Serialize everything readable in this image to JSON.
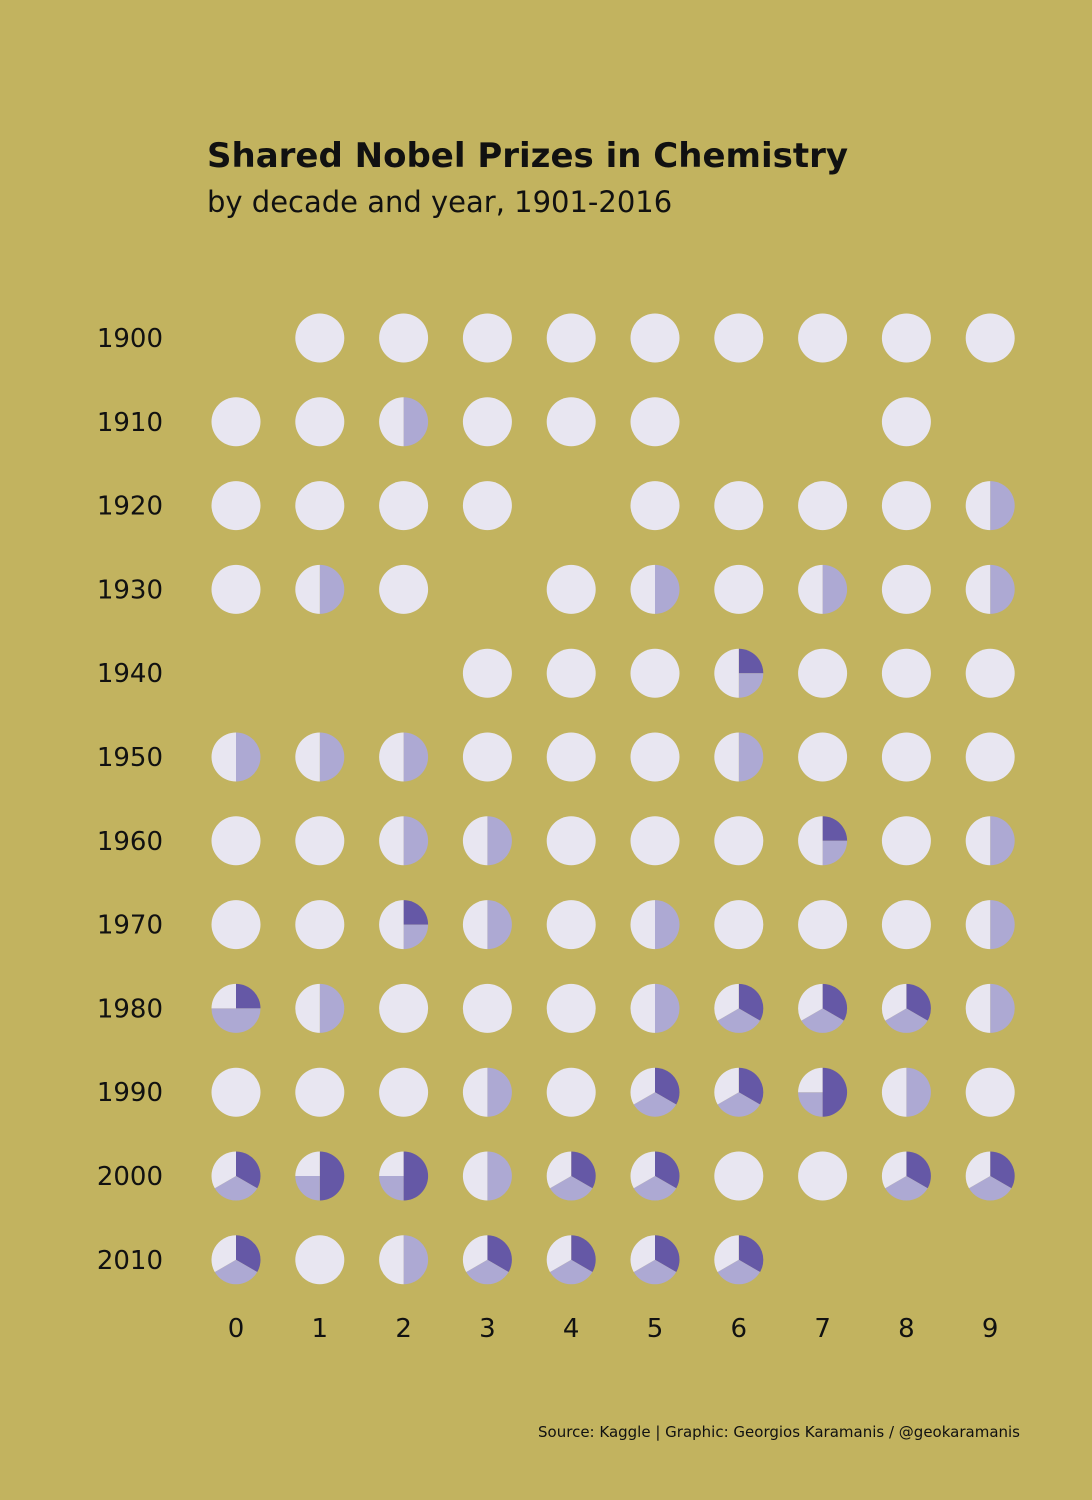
{
  "colors": {
    "background": "#c2b35f",
    "full_prize": "#e8e6f1",
    "minor_share": "#ada9d3",
    "major_share": "#6558a6"
  },
  "chart_data": {
    "type": "heatmap",
    "title": "Shared Nobel Prizes in Chemistry",
    "subtitle": "by decade and year, 1901-2016",
    "rows": [
      "1900",
      "1910",
      "1920",
      "1930",
      "1940",
      "1950",
      "1960",
      "1970",
      "1980",
      "1990",
      "2000",
      "2010"
    ],
    "columns": [
      "0",
      "1",
      "2",
      "3",
      "4",
      "5",
      "6",
      "7",
      "8",
      "9"
    ],
    "legend": "none",
    "encoding": "Each year is a circle split by prize share: 1 = whole prize, 1/2+1/2 = halves, 1/4+1/4+1/2 = quarters and a half, 1/3+1/3+1/3 = thirds; empty = no prize awarded",
    "cells": [
      [
        null,
        "1",
        "1",
        "1",
        "1",
        "1",
        "1",
        "1",
        "1",
        "1"
      ],
      [
        "1",
        "1",
        "1/2+1/2",
        "1",
        "1",
        "1",
        null,
        null,
        "1",
        null
      ],
      [
        "1",
        "1",
        "1",
        "1",
        null,
        "1",
        "1",
        "1",
        "1",
        "1/2+1/2"
      ],
      [
        "1",
        "1/2+1/2",
        "1",
        null,
        "1",
        "1/2+1/2",
        "1",
        "1/2+1/2",
        "1",
        "1/2+1/2"
      ],
      [
        null,
        null,
        null,
        "1",
        "1",
        "1",
        "1/4+1/4+1/2",
        "1",
        "1",
        "1"
      ],
      [
        "1/2+1/2",
        "1/2+1/2",
        "1/2+1/2",
        "1",
        "1",
        "1",
        "1/2+1/2",
        "1",
        "1",
        "1"
      ],
      [
        "1",
        "1",
        "1/2+1/2",
        "1/2+1/2",
        "1",
        "1",
        "1",
        "1/4+1/4+1/2",
        "1",
        "1/2+1/2"
      ],
      [
        "1",
        "1",
        "1/4+1/4+1/2",
        "1/2+1/2",
        "1",
        "1/2+1/2",
        "1",
        "1",
        "1",
        "1/2+1/2"
      ],
      [
        "1/4+1/4+1/2",
        "1/2+1/2",
        "1",
        "1",
        "1",
        "1/2+1/2",
        "1/3+1/3+1/3",
        "1/3+1/3+1/3",
        "1/3+1/3+1/3",
        "1/2+1/2"
      ],
      [
        "1",
        "1",
        "1",
        "1/2+1/2",
        "1",
        "1/3+1/3+1/3",
        "1/3+1/3+1/3",
        "1/4+1/4+1/2",
        "1/2+1/2",
        "1"
      ],
      [
        "1/3+1/3+1/3",
        "1/4+1/4+1/2",
        "1/4+1/4+1/2",
        "1/2+1/2",
        "1/3+1/3+1/3",
        "1/3+1/3+1/3",
        "1",
        "1",
        "1/3+1/3+1/3",
        "1/3+1/3+1/3"
      ],
      [
        "1/3+1/3+1/3",
        "1",
        "1/2+1/2",
        "1/3+1/3+1/3",
        "1/3+1/3+1/3",
        "1/3+1/3+1/3",
        "1/3+1/3+1/3",
        null,
        null,
        null
      ]
    ],
    "caption": "Source: Kaggle | Graphic: Georgios Karamanis / @geokaramanis"
  }
}
